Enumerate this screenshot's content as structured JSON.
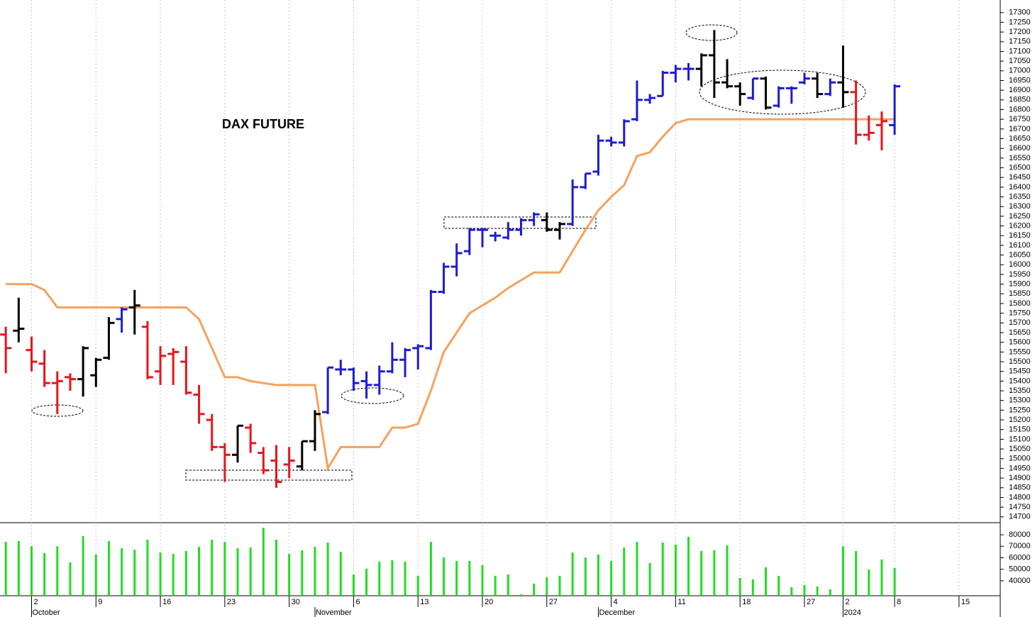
{
  "chart_data": {
    "type": "ohlc",
    "title": "DAX FUTURE",
    "x": [
      0,
      1,
      2,
      3,
      4,
      5,
      6,
      7,
      8,
      9,
      10,
      11,
      12,
      13,
      14,
      15,
      16,
      17,
      18,
      19,
      20,
      21,
      22,
      23,
      24,
      25,
      26,
      27,
      28,
      29,
      30,
      31,
      32,
      33,
      34,
      35,
      36,
      37,
      38,
      39,
      40,
      41,
      42,
      43,
      44,
      45,
      46,
      47,
      48,
      49,
      50,
      51,
      52,
      53,
      54,
      55,
      56,
      57,
      58,
      59,
      60,
      61,
      62,
      63,
      64,
      65,
      66,
      67,
      68,
      69
    ],
    "open": [
      15640,
      15660,
      15560,
      15490,
      15390,
      15420,
      15410,
      15430,
      15520,
      15720,
      15780,
      15680,
      15450,
      15540,
      15500,
      15330,
      15200,
      15060,
      15020,
      15160,
      15030,
      14990,
      14970,
      14960,
      15090,
      15240,
      15460,
      15460,
      15400,
      15380,
      15450,
      15510,
      15570,
      15570,
      15860,
      15990,
      16070,
      16180,
      16150,
      16140,
      16180,
      16230,
      16230,
      16180,
      16210,
      16400,
      16480,
      16640,
      16630,
      16750,
      16850,
      16870,
      16990,
      17010,
      17010,
      17080,
      16940,
      16920,
      16860,
      16960,
      16820,
      16910,
      16940,
      16960,
      16880,
      16940,
      16890,
      16670,
      16720,
      16720
    ],
    "high": [
      15680,
      15830,
      15630,
      15560,
      15450,
      15440,
      15580,
      15520,
      15730,
      15780,
      15870,
      15710,
      15580,
      15570,
      15580,
      15380,
      15230,
      15080,
      15170,
      15180,
      15060,
      15070,
      15060,
      15090,
      15250,
      15470,
      15510,
      15470,
      15450,
      15480,
      15600,
      15570,
      15590,
      15870,
      16010,
      16110,
      16190,
      16190,
      16170,
      16220,
      16240,
      16270,
      16270,
      16220,
      16440,
      16470,
      16670,
      16660,
      16750,
      16950,
      16880,
      17000,
      17030,
      17040,
      17090,
      17210,
      17060,
      16940,
      16960,
      16970,
      16920,
      16920,
      16990,
      16990,
      16960,
      17130,
      16950,
      16770,
      16790,
      16930
    ],
    "low": [
      15440,
      15600,
      15450,
      15370,
      15230,
      15350,
      15320,
      15370,
      15510,
      15650,
      15640,
      15410,
      15380,
      15380,
      15330,
      15180,
      15040,
      14880,
      14980,
      15030,
      14920,
      14850,
      14900,
      14940,
      15040,
      15230,
      15430,
      15350,
      15310,
      15330,
      15440,
      15420,
      15460,
      15560,
      15850,
      15940,
      16050,
      16090,
      16120,
      16130,
      16150,
      16200,
      16170,
      16130,
      16200,
      16390,
      16460,
      16610,
      16610,
      16740,
      16830,
      16870,
      16940,
      16950,
      16920,
      16860,
      16910,
      16820,
      16850,
      16800,
      16810,
      16830,
      16930,
      16860,
      16870,
      16810,
      16620,
      16640,
      16590,
      16670
    ],
    "close": [
      15570,
      15670,
      15500,
      15390,
      15400,
      15410,
      15570,
      15510,
      15700,
      15770,
      15790,
      15420,
      15530,
      15550,
      15340,
      15230,
      15060,
      15020,
      15170,
      15080,
      14940,
      14880,
      14990,
      15090,
      15230,
      15470,
      15460,
      15390,
      15380,
      15450,
      15510,
      15560,
      15580,
      15860,
      15990,
      16060,
      16180,
      16180,
      16150,
      16180,
      16230,
      16260,
      16180,
      16210,
      16400,
      16470,
      16640,
      16630,
      16740,
      16850,
      16860,
      16990,
      17010,
      17010,
      17080,
      16940,
      16920,
      16880,
      16960,
      16810,
      16910,
      16910,
      16960,
      16880,
      16940,
      16890,
      16670,
      16680,
      16740,
      16920
    ],
    "colors": [
      "#e8141c",
      "#000000",
      "#e8141c",
      "#e8141c",
      "#e8141c",
      "#e8141c",
      "#000000",
      "#000000",
      "#000000",
      "#1c1cd4",
      "#000000",
      "#e8141c",
      "#e8141c",
      "#e8141c",
      "#e8141c",
      "#e8141c",
      "#e8141c",
      "#e8141c",
      "#000000",
      "#e8141c",
      "#e8141c",
      "#e8141c",
      "#e8141c",
      "#000000",
      "#000000",
      "#1c1cd4",
      "#1c1cd4",
      "#1c1cd4",
      "#1c1cd4",
      "#1c1cd4",
      "#1c1cd4",
      "#1c1cd4",
      "#1c1cd4",
      "#1c1cd4",
      "#1c1cd4",
      "#1c1cd4",
      "#1c1cd4",
      "#1c1cd4",
      "#1c1cd4",
      "#1c1cd4",
      "#1c1cd4",
      "#1c1cd4",
      "#000000",
      "#000000",
      "#1c1cd4",
      "#1c1cd4",
      "#1c1cd4",
      "#1c1cd4",
      "#1c1cd4",
      "#1c1cd4",
      "#1c1cd4",
      "#1c1cd4",
      "#1c1cd4",
      "#1c1cd4",
      "#000000",
      "#000000",
      "#000000",
      "#000000",
      "#1c1cd4",
      "#000000",
      "#1c1cd4",
      "#1c1cd4",
      "#1c1cd4",
      "#000000",
      "#1c1cd4",
      "#000000",
      "#e8141c",
      "#e8141c",
      "#e8141c",
      "#1c1cd4"
    ],
    "stop": {
      "color": "#f5a25d",
      "values": [
        15900,
        15900,
        15900,
        15870,
        15780,
        15780,
        15780,
        15780,
        15780,
        15780,
        15780,
        15780,
        15780,
        15780,
        15780,
        15720,
        15570,
        15420,
        15420,
        15400,
        15390,
        15380,
        15380,
        15380,
        15380,
        14950,
        15060,
        15060,
        15060,
        15060,
        15160,
        15160,
        15180,
        15350,
        15550,
        15650,
        15750,
        15790,
        15830,
        15880,
        15920,
        15960,
        15960,
        15960,
        16070,
        16180,
        16280,
        16350,
        16410,
        16560,
        16580,
        16660,
        16730,
        16750,
        16750,
        16750,
        16750,
        16750,
        16750,
        16750,
        16750,
        16750,
        16750,
        16750,
        16750,
        16750,
        16750,
        16750,
        16750,
        16750
      ]
    },
    "volume": {
      "type": "bar",
      "color": "#22dd22",
      "values": [
        73800,
        74500,
        70000,
        64000,
        70000,
        56000,
        78800,
        62800,
        74500,
        68300,
        67000,
        75700,
        64600,
        63400,
        65800,
        69500,
        75700,
        73800,
        68300,
        68900,
        86100,
        75700,
        63400,
        66500,
        69500,
        73200,
        65200,
        45500,
        50500,
        56600,
        57800,
        56600,
        44300,
        73800,
        60300,
        57200,
        57200,
        53500,
        44300,
        45500,
        28300,
        37500,
        43100,
        44300,
        64600,
        60300,
        62800,
        57200,
        68900,
        73800,
        55400,
        73200,
        71400,
        78200,
        65800,
        66500,
        70800,
        42500,
        41200,
        51700,
        44300,
        34500,
        36300,
        35100,
        32600,
        70000,
        65800,
        49800,
        58500,
        51100
      ],
      "ylim": [
        27000,
        90500
      ],
      "yticks": [
        40000,
        50000,
        60000,
        70000,
        80000
      ]
    },
    "xlim": [
      -0.45,
      77.2
    ],
    "xticks": [
      {
        "value": 2,
        "label": "2"
      },
      {
        "value": 7,
        "label": "9"
      },
      {
        "value": 12,
        "label": "16"
      },
      {
        "value": 17,
        "label": "23"
      },
      {
        "value": 22,
        "label": "30"
      },
      {
        "value": 27,
        "label": "6"
      },
      {
        "value": 32,
        "label": "13"
      },
      {
        "value": 37,
        "label": "20"
      },
      {
        "value": 42,
        "label": "27"
      },
      {
        "value": 47,
        "label": "4"
      },
      {
        "value": 52,
        "label": "11"
      },
      {
        "value": 57,
        "label": "18"
      },
      {
        "value": 62,
        "label": "27"
      },
      {
        "value": 65,
        "label": "2"
      },
      {
        "value": 69,
        "label": "8"
      },
      {
        "value": 74,
        "label": "15"
      }
    ],
    "month_ticks": [
      {
        "value": 2,
        "label": "October"
      },
      {
        "value": 24,
        "label": "November"
      },
      {
        "value": 46,
        "label": "December"
      },
      {
        "value": 65,
        "label": "2024"
      }
    ],
    "ylim": [
      14670,
      17365
    ],
    "yticks": [
      14700,
      14750,
      14800,
      14850,
      14900,
      14950,
      15000,
      15050,
      15100,
      15150,
      15200,
      15250,
      15300,
      15350,
      15400,
      15450,
      15500,
      15550,
      15600,
      15650,
      15700,
      15750,
      15800,
      15850,
      15900,
      15950,
      16000,
      16050,
      16100,
      16150,
      16200,
      16250,
      16300,
      16350,
      16400,
      16450,
      16500,
      16550,
      16600,
      16650,
      16700,
      16750,
      16800,
      16850,
      16900,
      16950,
      17000,
      17050,
      17100,
      17150,
      17200,
      17250,
      17300
    ],
    "grid": true
  }
}
